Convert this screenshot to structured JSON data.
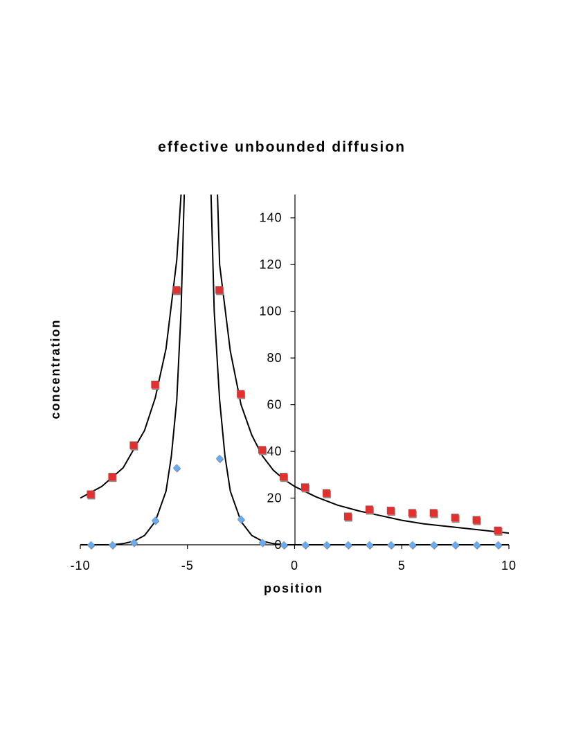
{
  "chart_data": {
    "type": "scatter",
    "title": "effective unbounded diffusion",
    "xlabel": "position",
    "ylabel": "concentration",
    "xlim": [
      -10,
      10
    ],
    "ylim": [
      0,
      150
    ],
    "x_ticks": [
      -10,
      -5,
      0,
      5,
      10
    ],
    "x_tick_labels": [
      "-10",
      "-5",
      "0",
      "5",
      "10"
    ],
    "y_ticks": [
      0,
      20,
      40,
      60,
      80,
      100,
      120,
      140
    ],
    "y_tick_labels": [
      "0",
      "20",
      "40",
      "60",
      "80",
      "100",
      "120",
      "140"
    ],
    "grid": false,
    "legend": "none",
    "series": [
      {
        "marker": "square",
        "color": "#e03131",
        "shadow_color": "#8a8a8a",
        "points": [
          [
            -9.5,
            21.5
          ],
          [
            -8.5,
            29
          ],
          [
            -7.5,
            42.5
          ],
          [
            -6.5,
            68.5
          ],
          [
            -5.5,
            109
          ],
          [
            -3.5,
            109
          ],
          [
            -2.5,
            64.5
          ],
          [
            -1.5,
            40.5
          ],
          [
            -0.5,
            29
          ],
          [
            0.5,
            24.5
          ],
          [
            1.5,
            22
          ],
          [
            2.5,
            12
          ],
          [
            3.5,
            15
          ],
          [
            4.5,
            14.5
          ],
          [
            5.5,
            13.5
          ],
          [
            6.5,
            13.5
          ],
          [
            7.5,
            11.5
          ],
          [
            8.5,
            10.5
          ],
          [
            9.5,
            6
          ]
        ]
      },
      {
        "marker": "diamond",
        "color": "#6aaaf0",
        "shadow_color": "#8a8a8a",
        "points": [
          [
            -9.5,
            0
          ],
          [
            -8.5,
            0
          ],
          [
            -7.5,
            1
          ],
          [
            -6.5,
            10.5
          ],
          [
            -5.5,
            33
          ],
          [
            -3.5,
            37
          ],
          [
            -2.5,
            11
          ],
          [
            -1.5,
            1
          ],
          [
            -0.5,
            0
          ],
          [
            0.5,
            0
          ],
          [
            1.5,
            0
          ],
          [
            2.5,
            0
          ],
          [
            3.5,
            0
          ],
          [
            4.5,
            0
          ],
          [
            5.5,
            0
          ],
          [
            6.5,
            0
          ],
          [
            7.5,
            0
          ],
          [
            8.5,
            0
          ],
          [
            9.5,
            0
          ]
        ]
      }
    ],
    "fit_curves": [
      {
        "color": "#000000",
        "points": [
          [
            -10,
            20
          ],
          [
            -9,
            25
          ],
          [
            -8,
            33
          ],
          [
            -7,
            49
          ],
          [
            -6.5,
            63
          ],
          [
            -6,
            84
          ],
          [
            -5.5,
            122
          ],
          [
            -5.3,
            150
          ],
          null,
          [
            -3.6,
            150
          ],
          [
            -3.5,
            120
          ],
          [
            -3,
            83
          ],
          [
            -2.5,
            60
          ],
          [
            -2,
            47
          ],
          [
            -1.5,
            38
          ],
          [
            -1,
            32
          ],
          [
            -0.5,
            28
          ],
          [
            0,
            25
          ],
          [
            1,
            20.5
          ],
          [
            2,
            17
          ],
          [
            3,
            14.5
          ],
          [
            4,
            12.5
          ],
          [
            5,
            10.5
          ],
          [
            6,
            9
          ],
          [
            7,
            8
          ],
          [
            8,
            7
          ],
          [
            9,
            6
          ],
          [
            10,
            5
          ]
        ]
      },
      {
        "color": "#000000",
        "points": [
          [
            -10,
            0
          ],
          [
            -9,
            0
          ],
          [
            -8.5,
            0
          ],
          [
            -8,
            0.5
          ],
          [
            -7.5,
            1.5
          ],
          [
            -7,
            4
          ],
          [
            -6.5,
            10
          ],
          [
            -6,
            23
          ],
          [
            -5.75,
            38
          ],
          [
            -5.5,
            62
          ],
          [
            -5.3,
            100
          ],
          [
            -5.15,
            150
          ],
          null,
          [
            -3.9,
            150
          ],
          [
            -3.75,
            100
          ],
          [
            -3.5,
            62
          ],
          [
            -3.25,
            38
          ],
          [
            -3,
            23
          ],
          [
            -2.5,
            10
          ],
          [
            -2,
            4
          ],
          [
            -1.5,
            1.5
          ],
          [
            -1,
            0.5
          ],
          [
            -0.5,
            0
          ],
          [
            0,
            0
          ],
          [
            2,
            0
          ],
          [
            4,
            0
          ],
          [
            6,
            0
          ],
          [
            8,
            0
          ],
          [
            10,
            0
          ]
        ]
      }
    ]
  }
}
